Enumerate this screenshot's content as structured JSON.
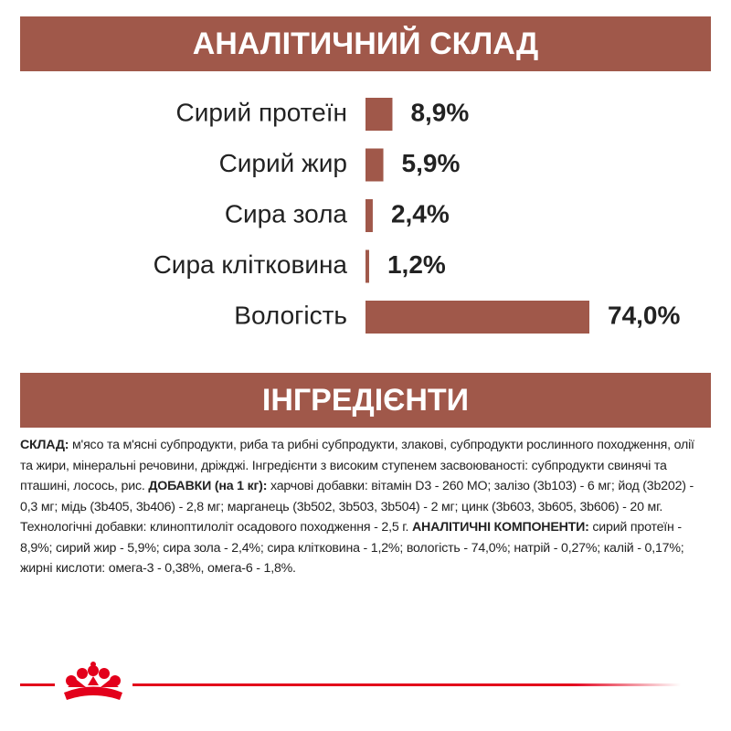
{
  "chart_data": {
    "type": "hbar",
    "title": "АНАЛІТИЧНИЙ СКЛАД",
    "categories": [
      "Сирий протеїн",
      "Сирий жир",
      "Сира зола",
      "Сира клітковина",
      "Вологість"
    ],
    "values": [
      8.9,
      5.9,
      2.4,
      1.2,
      74.0
    ],
    "value_labels": [
      "8,9%",
      "5,9%",
      "2,4%",
      "1,2%",
      "74,0%"
    ],
    "color": "#a0584a"
  },
  "ingredients": {
    "title": "ІНГРЕДІЄНТИ",
    "segments": [
      {
        "text": "СКЛАД:",
        "bold": true
      },
      {
        "text": " м'ясо та м'ясні субпродукти, риба та рибні субпродукти, злакові, субпродукти рослинного походження, олії та жири, мінеральні речовини, дріжджі. Інгредієнти з високим ступенем засвоюваності: субпродукти свинячі та пташині, лосось, рис. ",
        "bold": false
      },
      {
        "text": "ДОБАВКИ (на 1 кг):",
        "bold": true
      },
      {
        "text": " харчові добавки: вітамін D3 - 260 МО; залізо (3b103) - 6 мг; йод (3b202) - 0,3 мг; мідь (3b405, 3b406) - 2,8 мг; марганець (3b502, 3b503, 3b504) - 2 мг; цинк (3b603, 3b605, 3b606) - 20 мг. Технологічні добавки: клиноптилоліт осадового походження - 2,5 г. ",
        "bold": false
      },
      {
        "text": "АНАЛІТИЧНІ КОМПОНЕНТИ:",
        "bold": true
      },
      {
        "text": " сирий протеїн - 8,9%; сирий жир - 5,9%; сира зола - 2,4%; сира клітковина - 1,2%; вологість - 74,0%; натрій - 0,27%; калій - 0,17%; жирні кислоти: омега-3 - 0,38%, омега-6 - 1,8%.",
        "bold": false
      }
    ]
  }
}
